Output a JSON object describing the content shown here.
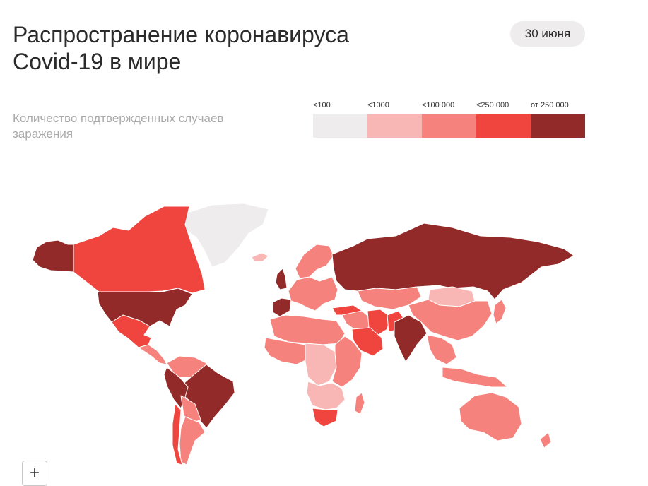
{
  "header": {
    "title": "Распространение коронавируса\nCovid-19 в мире",
    "date_badge": "30 июня",
    "subtitle": "Количество подтвержденных случаев заражения"
  },
  "legend": {
    "items": [
      {
        "label": "<100",
        "color": "#eeecec"
      },
      {
        "label": "<1000",
        "color": "#f8b6b4"
      },
      {
        "label": "<100 000",
        "color": "#f5827d"
      },
      {
        "label": "<250 000",
        "color": "#f0453f"
      },
      {
        "label": "от 250 000",
        "color": "#912a28"
      }
    ]
  },
  "map": {
    "regions": [
      {
        "name": "greenland",
        "class": "<100"
      },
      {
        "name": "alaska",
        "class": "от 250 000"
      },
      {
        "name": "canada",
        "class": "<250 000"
      },
      {
        "name": "usa",
        "class": "от 250 000"
      },
      {
        "name": "mexico",
        "class": "<250 000"
      },
      {
        "name": "central-america",
        "class": "<100 000"
      },
      {
        "name": "colombia-venezuela",
        "class": "<100 000"
      },
      {
        "name": "brazil",
        "class": "от 250 000"
      },
      {
        "name": "peru",
        "class": "от 250 000"
      },
      {
        "name": "bolivia-paraguay",
        "class": "<100 000"
      },
      {
        "name": "argentina",
        "class": "<100 000"
      },
      {
        "name": "chile",
        "class": "<250 000"
      },
      {
        "name": "iceland",
        "class": "<1000"
      },
      {
        "name": "uk",
        "class": "от 250 000"
      },
      {
        "name": "spain",
        "class": "от 250 000"
      },
      {
        "name": "europe",
        "class": "<100 000"
      },
      {
        "name": "scandinavia",
        "class": "<100 000"
      },
      {
        "name": "russia",
        "class": "от 250 000"
      },
      {
        "name": "kazakhstan-central-asia",
        "class": "<100 000"
      },
      {
        "name": "turkey",
        "class": "<250 000"
      },
      {
        "name": "middle-east",
        "class": "<100 000"
      },
      {
        "name": "iran",
        "class": "<250 000"
      },
      {
        "name": "saudi-arabia",
        "class": "<250 000"
      },
      {
        "name": "india",
        "class": "от 250 000"
      },
      {
        "name": "pakistan",
        "class": "<250 000"
      },
      {
        "name": "mongolia",
        "class": "<1000"
      },
      {
        "name": "china",
        "class": "<100 000"
      },
      {
        "name": "southeast-asia",
        "class": "<100 000"
      },
      {
        "name": "japan",
        "class": "<100 000"
      },
      {
        "name": "north-africa",
        "class": "<100 000"
      },
      {
        "name": "west-africa",
        "class": "<100 000"
      },
      {
        "name": "central-africa",
        "class": "<1000"
      },
      {
        "name": "east-africa",
        "class": "<100 000"
      },
      {
        "name": "southern-africa",
        "class": "<1000"
      },
      {
        "name": "south-africa",
        "class": "<250 000"
      },
      {
        "name": "madagascar",
        "class": "<100 000"
      },
      {
        "name": "australia",
        "class": "<100 000"
      },
      {
        "name": "new-zealand",
        "class": "<100 000"
      },
      {
        "name": "indonesia",
        "class": "<100 000"
      }
    ]
  },
  "controls": {
    "zoom_in": "+"
  }
}
